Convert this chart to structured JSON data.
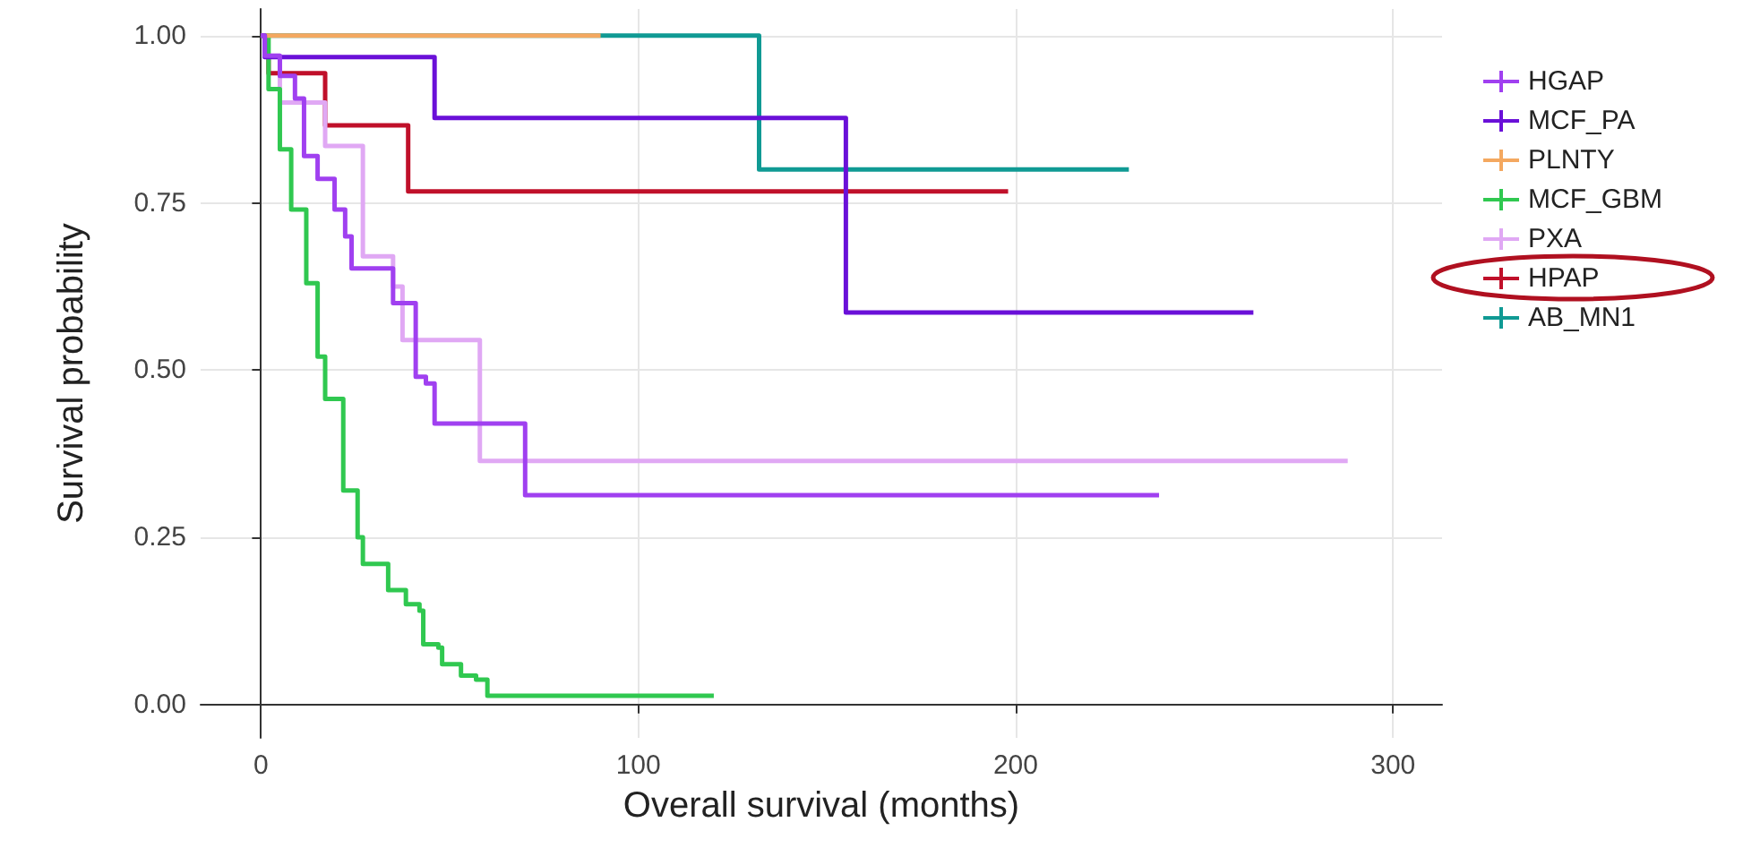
{
  "chart_data": {
    "type": "step",
    "xlabel": "Overall survival (months)",
    "ylabel": "Survival probability",
    "xlim": [
      -16,
      313
    ],
    "xticks": [
      0,
      100,
      200,
      300
    ],
    "ylim": [
      -0.05,
      1.04
    ],
    "yticks": [
      {
        "value": 0,
        "label": "0.00"
      },
      {
        "value": 0.25,
        "label": "0.25"
      },
      {
        "value": 0.5,
        "label": "0.50"
      },
      {
        "value": 0.75,
        "label": "0.75"
      },
      {
        "value": 1,
        "label": "1.00"
      }
    ],
    "grid": true,
    "legend": "right",
    "line_style": "solid",
    "series": [
      {
        "name": "HGAP",
        "color": "#a040f0",
        "x": [
          0,
          1,
          5,
          9,
          11.4,
          15,
          19.5,
          22.3,
          24,
          35,
          41,
          43.7,
          46,
          70,
          238
        ],
        "values": [
          1,
          0.97,
          0.94,
          0.906,
          0.82,
          0.786,
          0.74,
          0.7,
          0.652,
          0.6,
          0.49,
          0.48,
          0.42,
          0.313,
          0.313
        ]
      },
      {
        "name": "MCF_PA",
        "color": "#6a10d8",
        "x": [
          0,
          1,
          46,
          155,
          263
        ],
        "values": [
          1,
          0.968,
          0.877,
          0.586,
          0.586
        ]
      },
      {
        "name": "PLNTY",
        "color": "#f4a860",
        "x": [
          0,
          90
        ],
        "values": [
          1,
          1
        ]
      },
      {
        "name": "MCF_GBM",
        "color": "#30c850",
        "x": [
          0,
          2,
          5,
          8,
          12,
          15,
          17,
          21.8,
          25.6,
          27,
          33.7,
          38.4,
          42,
          43,
          47,
          48,
          53,
          57,
          60,
          120
        ],
        "values": [
          1,
          0.92,
          0.83,
          0.74,
          0.63,
          0.52,
          0.457,
          0.32,
          0.25,
          0.21,
          0.171,
          0.15,
          0.14,
          0.09,
          0.085,
          0.06,
          0.043,
          0.037,
          0.013,
          0.013
        ]
      },
      {
        "name": "PXA",
        "color": "#e0a8f4",
        "x": [
          0,
          1,
          5,
          17,
          27,
          35,
          37.5,
          58,
          288
        ],
        "values": [
          1,
          0.97,
          0.9,
          0.835,
          0.67,
          0.625,
          0.545,
          0.364,
          0.364
        ]
      },
      {
        "name": "HPAP",
        "color": "#c0102a",
        "x": [
          0,
          1,
          2,
          17,
          39,
          198
        ],
        "values": [
          1,
          0.97,
          0.944,
          0.866,
          0.767,
          0.767
        ]
      },
      {
        "name": "AB_MN1",
        "color": "#109a94",
        "x": [
          0,
          132,
          230
        ],
        "values": [
          1,
          0.8,
          0.8
        ]
      }
    ]
  }
}
